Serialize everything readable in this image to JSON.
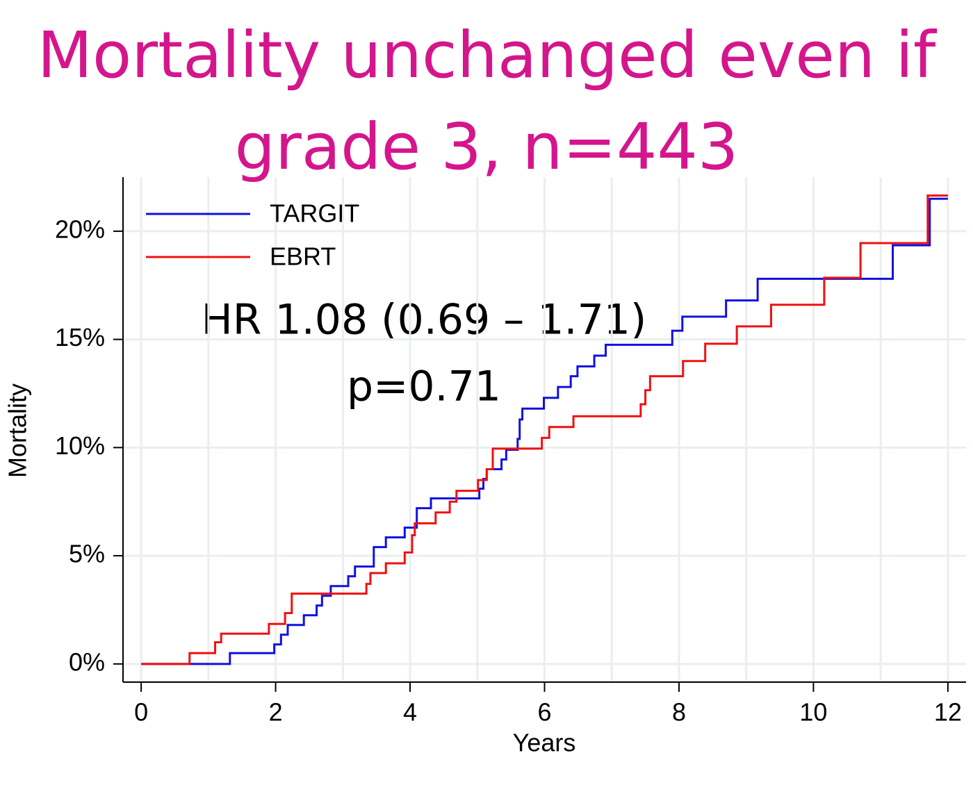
{
  "chart_data": {
    "type": "step",
    "title": "Mortality unchanged even if grade 3, n=443",
    "xlabel": "Years",
    "ylabel": "Mortality",
    "annotations": [
      "HR 1.08 (0.69 – 1.71)",
      "p=0.71"
    ],
    "xlim": [
      -0.27,
      12.27
    ],
    "ylim": [
      -0.84,
      22.5
    ],
    "xticks": [
      0,
      2,
      4,
      6,
      8,
      10,
      12
    ],
    "xminorticks": [
      1,
      3,
      5,
      7,
      9,
      11
    ],
    "yticks": [
      {
        "value": 0,
        "label": "0%"
      },
      {
        "value": 5,
        "label": "5%"
      },
      {
        "value": 10,
        "label": "10%"
      },
      {
        "value": 15,
        "label": "15%"
      },
      {
        "value": 20,
        "label": "20%"
      }
    ],
    "grid": true,
    "legend": "upper left",
    "series": [
      {
        "name": "TARGIT",
        "color": "#1010e0",
        "x": [
          0,
          1.32,
          1.98,
          2.08,
          2.18,
          2.42,
          2.61,
          2.69,
          2.82,
          3.08,
          3.18,
          3.46,
          3.64,
          3.92,
          4.1,
          4.31,
          5.03,
          5.09,
          5.14,
          5.36,
          5.43,
          5.6,
          5.63,
          5.67,
          5.99,
          6.2,
          6.39,
          6.49,
          6.74,
          6.91,
          7.9,
          8.05,
          8.7,
          9.17,
          11.18,
          11.73,
          12
        ],
        "values": [
          0,
          0.5,
          0.9,
          1.35,
          1.8,
          2.25,
          2.7,
          3.15,
          3.6,
          4.05,
          4.5,
          5.4,
          5.85,
          6.3,
          7.2,
          7.65,
          8.1,
          8.55,
          9.0,
          9.45,
          9.9,
          10.4,
          11.3,
          11.8,
          12.3,
          12.8,
          13.3,
          13.75,
          14.25,
          14.75,
          15.4,
          16.05,
          16.8,
          17.8,
          19.35,
          21.5,
          21.5
        ]
      },
      {
        "name": "EBRT",
        "color": "#f01010",
        "x": [
          0,
          0.72,
          1.1,
          1.19,
          1.9,
          2.14,
          2.24,
          3.35,
          3.41,
          3.64,
          3.92,
          4.03,
          4.07,
          4.38,
          4.59,
          4.69,
          5.01,
          5.14,
          5.23,
          5.96,
          6.07,
          6.43,
          7.43,
          7.5,
          7.57,
          8.06,
          8.39,
          8.86,
          9.37,
          10.16,
          10.7,
          11.7,
          12
        ],
        "values": [
          0,
          0.5,
          1.0,
          1.4,
          1.85,
          2.35,
          3.25,
          3.7,
          4.2,
          4.65,
          5.15,
          5.95,
          6.5,
          7.0,
          7.5,
          8.0,
          8.5,
          9.0,
          9.95,
          10.45,
          10.95,
          11.45,
          12.0,
          12.65,
          13.3,
          14.0,
          14.8,
          15.6,
          16.6,
          17.85,
          19.45,
          21.65,
          21.65
        ]
      }
    ]
  }
}
